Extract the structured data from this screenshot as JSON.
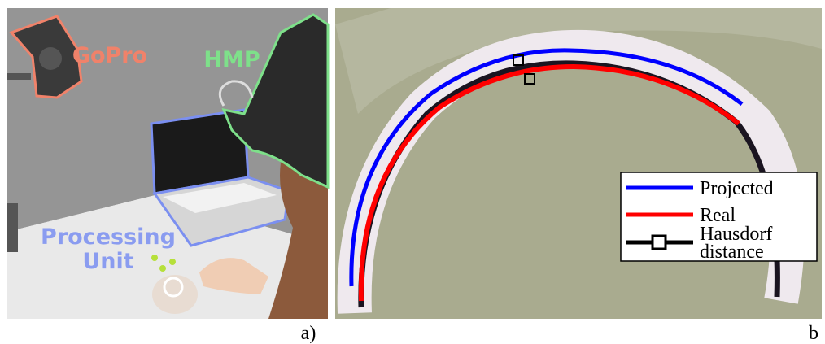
{
  "panels": [
    {
      "label": "a)",
      "annotations": [
        {
          "lines": [
            "GoPro"
          ],
          "color": "#f0826a"
        },
        {
          "lines": [
            "HMP"
          ],
          "color": "#7ee08a"
        },
        {
          "lines": [
            "Processing",
            "Unit"
          ],
          "color": "#8a9cf0"
        }
      ]
    },
    {
      "label": "b",
      "legend": [
        {
          "lines": [
            "Projected"
          ],
          "color": "#0000ff"
        },
        {
          "lines": [
            "Real"
          ],
          "color": "#ff0000"
        },
        {
          "lines": [
            "Hausdorf",
            "distance"
          ],
          "color": "#000000"
        }
      ]
    }
  ]
}
